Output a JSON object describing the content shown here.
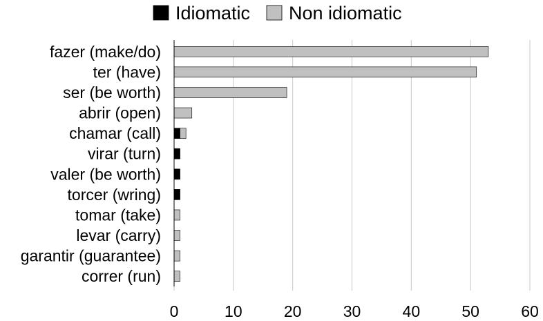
{
  "chart_data": {
    "type": "bar",
    "orientation": "horizontal",
    "stacked": true,
    "categories": [
      "fazer (make/do)",
      "ter (have)",
      "ser (be worth)",
      "abrir (open)",
      "chamar (call)",
      "virar (turn)",
      "valer (be worth)",
      "torcer (wring)",
      "tomar (take)",
      "levar (carry)",
      "garantir (guarantee)",
      "correr (run)"
    ],
    "series": [
      {
        "name": "Idiomatic",
        "color": "#000000",
        "values": [
          0,
          0,
          0,
          0,
          1,
          1,
          1,
          1,
          0,
          0,
          0,
          0
        ]
      },
      {
        "name": "Non idiomatic",
        "color": "#c0c0c0",
        "values": [
          53,
          51,
          19,
          3,
          1,
          0,
          0,
          0,
          1,
          1,
          1,
          1
        ]
      }
    ],
    "xlim": [
      0,
      60
    ],
    "xticks": [
      0,
      10,
      20,
      30,
      40,
      50,
      60
    ],
    "grid": "vertical",
    "legend_position": "top"
  }
}
